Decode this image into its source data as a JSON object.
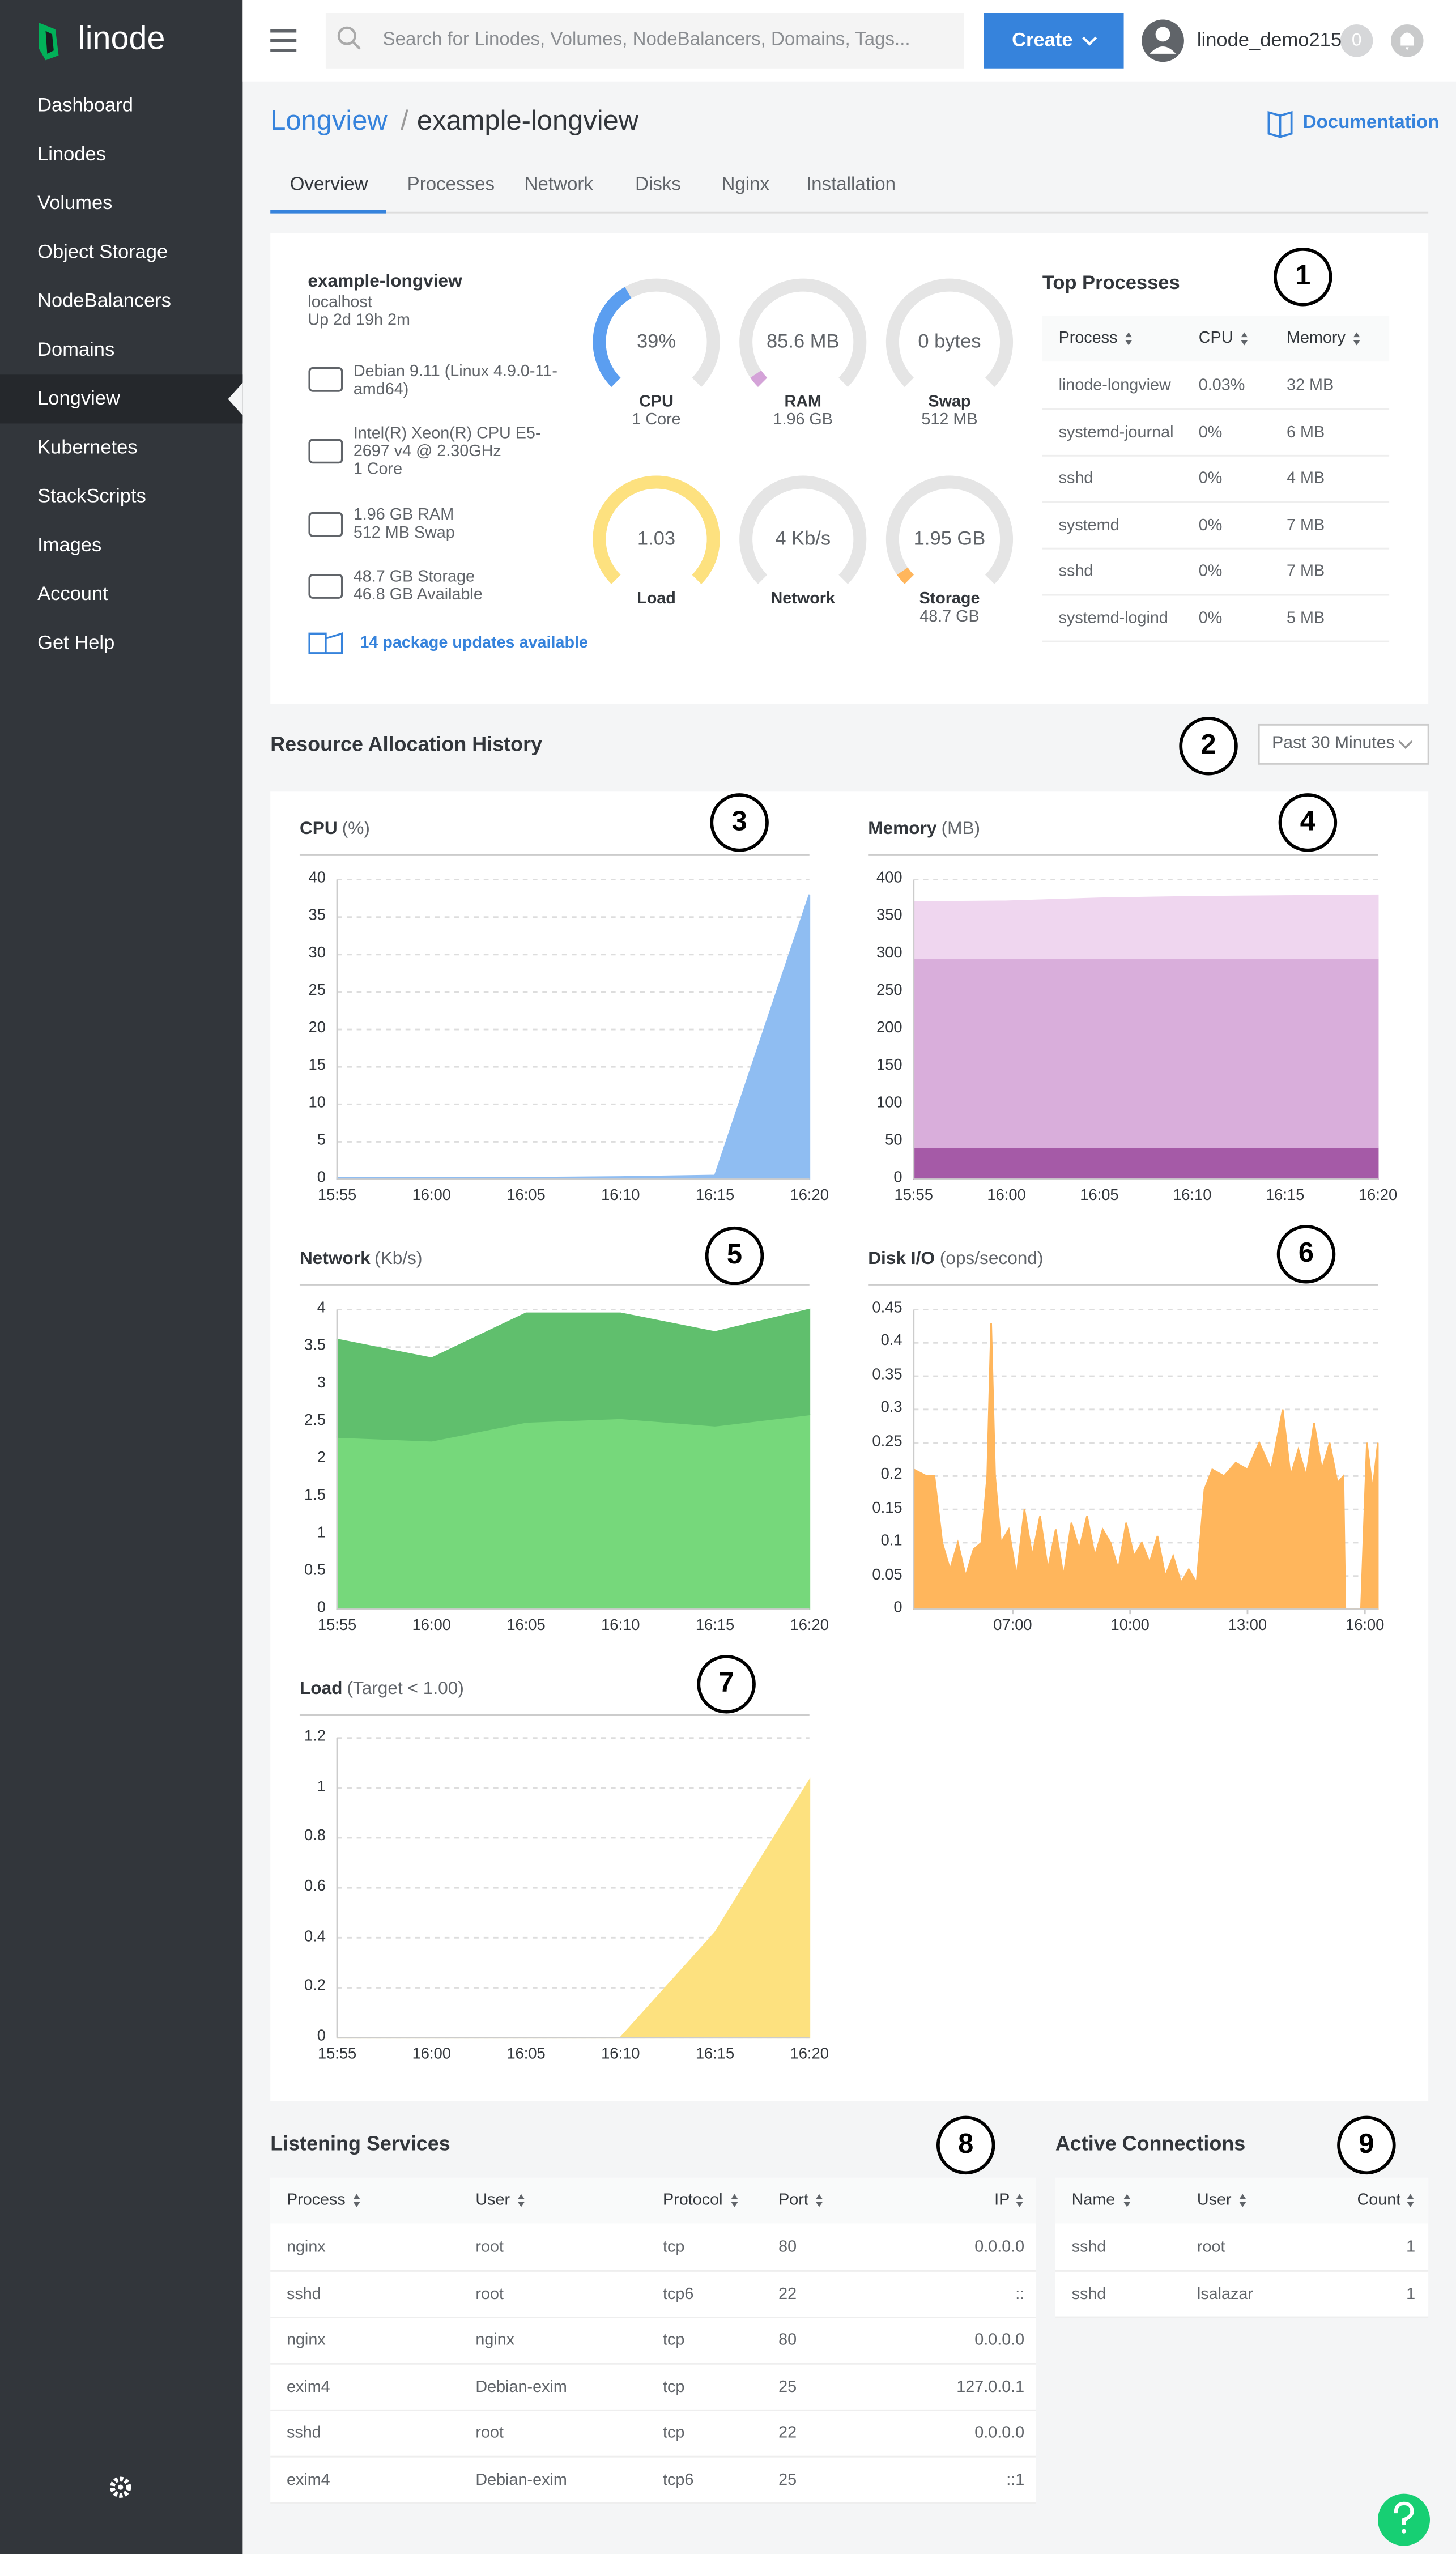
{
  "sidebar": {
    "logo": "linode",
    "menu": [
      "Dashboard",
      "Linodes",
      "Volumes",
      "Object Storage",
      "NodeBalancers",
      "Domains",
      "Longview",
      "Kubernetes",
      "StackScripts",
      "Images",
      "Account",
      "Get Help"
    ]
  },
  "topbar": {
    "search_placeholder": "Search for Linodes, Volumes, NodeBalancers, Domains, Tags...",
    "create_button": "Create",
    "username": "linode_demo215",
    "notification_count": "0"
  },
  "page_header": {
    "breadcrumb_parent": "Longview",
    "separator": "/",
    "title": "example-longview",
    "documentation": "Documentation"
  },
  "tabs": [
    "Overview",
    "Processes",
    "Network",
    "Disks",
    "Nginx",
    "Installation"
  ],
  "overview": {
    "hostname": "example-longview",
    "host": "localhost",
    "uptime": "Up 2d 19h 2m",
    "specs": [
      [
        "Debian 9.11 (Linux 4.9.0-11-amd64)"
      ],
      [
        "Intel(R) Xeon(R) CPU E5-2697 v4 @ 2.30GHz",
        "1 Core"
      ],
      [
        "1.96 GB RAM",
        "512 MB Swap"
      ],
      [
        "48.7 GB Storage",
        "46.8 GB Available"
      ]
    ],
    "updates": "14 package updates available",
    "gauges": [
      {
        "value_label": "39%",
        "name": "CPU",
        "detail": "1 Core",
        "fill": 39,
        "color": "#5b9ef0"
      },
      {
        "value_label": "85.6 MB",
        "name": "RAM",
        "detail": "1.96 GB",
        "fill": 4,
        "color": "#d4a3d8"
      },
      {
        "value_label": "0 bytes",
        "name": "Swap",
        "detail": "512 MB",
        "fill": 0,
        "color": "#d4a3d8"
      },
      {
        "value_label": "1.03",
        "name": "Load",
        "fill": 100,
        "color": "#fde17f"
      },
      {
        "value_label": "4 Kb/s",
        "name": "Network",
        "fill": 0,
        "color": "#5ec16d"
      },
      {
        "value_label": "1.95 GB",
        "name": "Storage",
        "detail": "48.7 GB",
        "fill": 4,
        "color": "#ffb65c"
      }
    ]
  },
  "top_processes": {
    "title": "Top Processes",
    "columns": [
      "Process",
      "CPU",
      "Memory"
    ],
    "rows": [
      [
        "linode-longview",
        "0.03%",
        "32 MB"
      ],
      [
        "systemd-journal",
        "0%",
        "6 MB"
      ],
      [
        "sshd",
        "0%",
        "4 MB"
      ],
      [
        "systemd",
        "0%",
        "7 MB"
      ],
      [
        "sshd",
        "0%",
        "7 MB"
      ],
      [
        "systemd-logind",
        "0%",
        "5 MB"
      ]
    ]
  },
  "resource_history": {
    "title": "Resource Allocation History",
    "range": "Past 30 Minutes"
  },
  "listening_services": {
    "title": "Listening Services",
    "columns": [
      "Process",
      "User",
      "Protocol",
      "Port",
      "IP"
    ],
    "rows": [
      [
        "nginx",
        "root",
        "tcp",
        "80",
        "0.0.0.0"
      ],
      [
        "sshd",
        "root",
        "tcp6",
        "22",
        "::"
      ],
      [
        "nginx",
        "nginx",
        "tcp",
        "80",
        "0.0.0.0"
      ],
      [
        "exim4",
        "Debian-exim",
        "tcp",
        "25",
        "127.0.0.1"
      ],
      [
        "sshd",
        "root",
        "tcp",
        "22",
        "0.0.0.0"
      ],
      [
        "exim4",
        "Debian-exim",
        "tcp6",
        "25",
        "::1"
      ]
    ]
  },
  "active_connections": {
    "title": "Active Connections",
    "columns": [
      "Name",
      "User",
      "Count"
    ],
    "rows": [
      [
        "sshd",
        "root",
        "1"
      ],
      [
        "sshd",
        "lsalazar",
        "1"
      ]
    ]
  },
  "markers": [
    "1",
    "2",
    "3",
    "4",
    "5",
    "6",
    "7",
    "8",
    "9"
  ],
  "chart_data": [
    {
      "type": "area",
      "title": "CPU",
      "subtitle": "(%)",
      "categories": [
        "15:55",
        "16:00",
        "16:05",
        "16:10",
        "16:15",
        "16:20"
      ],
      "values": [
        0.2,
        0.2,
        0.2,
        0.3,
        0.5,
        38
      ],
      "color": "#8fbdf2",
      "ylim": [
        0,
        40
      ],
      "yticks": [
        0,
        5,
        10,
        15,
        20,
        25,
        30,
        35,
        40
      ],
      "grid": true
    },
    {
      "type": "area",
      "stacked": true,
      "title": "Memory",
      "subtitle": "(MB)",
      "categories": [
        "15:55",
        "16:00",
        "16:05",
        "16:10",
        "16:15",
        "16:20"
      ],
      "series": [
        {
          "color": "#a55aa7",
          "values": [
            43,
            43,
            43,
            43,
            43,
            43
          ]
        },
        {
          "color": "#d9aedb",
          "values": [
            252,
            252,
            252,
            252,
            252,
            252
          ]
        },
        {
          "color": "#efd6ef",
          "values": [
            75,
            76,
            80,
            82,
            83,
            84
          ]
        }
      ],
      "ylim": [
        0,
        400
      ],
      "yticks": [
        0,
        50,
        100,
        150,
        200,
        250,
        300,
        350,
        400
      ],
      "grid": true
    },
    {
      "type": "area",
      "stacked": true,
      "title": "Network",
      "subtitle": "(Kb/s)",
      "categories": [
        "15:55",
        "16:00",
        "16:05",
        "16:10",
        "16:15",
        "16:20"
      ],
      "series": [
        {
          "color": "#76d87b",
          "values": [
            2.3,
            2.25,
            2.5,
            2.55,
            2.45,
            2.6
          ]
        },
        {
          "color": "#60bf6d",
          "values": [
            1.3,
            1.1,
            1.45,
            1.4,
            1.25,
            1.4
          ]
        }
      ],
      "ylim": [
        0,
        4
      ],
      "yticks": [
        0,
        0.5,
        1,
        1.5,
        2,
        2.5,
        3,
        3.5,
        4
      ],
      "grid": true
    },
    {
      "type": "area",
      "title": "Disk I/O",
      "subtitle": "(ops/second)",
      "x": [
        4.47,
        4.8,
        5.0,
        5.2,
        5.4,
        5.6,
        5.8,
        6.0,
        6.2,
        6.35,
        6.45,
        6.55,
        6.7,
        6.9,
        7.1,
        7.3,
        7.5,
        7.7,
        7.9,
        8.1,
        8.3,
        8.5,
        8.7,
        8.9,
        9.1,
        9.3,
        9.5,
        9.7,
        9.9,
        10.1,
        10.3,
        10.5,
        10.7,
        10.9,
        11.1,
        11.3,
        11.5,
        11.7,
        11.9,
        12.1,
        12.4,
        12.7,
        13.0,
        13.3,
        13.6,
        13.9,
        14.1,
        14.3,
        14.5,
        14.7,
        14.9,
        15.1,
        15.3,
        15.45,
        15.5,
        15.9,
        16.05,
        16.2,
        16.33
      ],
      "values": [
        0.21,
        0.2,
        0.2,
        0.1,
        0.06,
        0.1,
        0.05,
        0.09,
        0.1,
        0.2,
        0.43,
        0.2,
        0.1,
        0.12,
        0.05,
        0.15,
        0.08,
        0.14,
        0.06,
        0.12,
        0.05,
        0.13,
        0.09,
        0.14,
        0.08,
        0.12,
        0.1,
        0.06,
        0.13,
        0.08,
        0.1,
        0.07,
        0.11,
        0.05,
        0.08,
        0.04,
        0.06,
        0.04,
        0.18,
        0.21,
        0.2,
        0.22,
        0.21,
        0.25,
        0.21,
        0.3,
        0.2,
        0.24,
        0.2,
        0.28,
        0.21,
        0.25,
        0.19,
        0.2,
        0,
        0,
        0.25,
        0.18,
        0.25
      ],
      "color": "#ffb65c",
      "xlim": [
        4.47,
        16.33
      ],
      "xticks": [
        {
          "value": 7,
          "label": "07:00"
        },
        {
          "value": 10,
          "label": "10:00"
        },
        {
          "value": 13,
          "label": "13:00"
        },
        {
          "value": 16,
          "label": "16:00"
        }
      ],
      "ylim": [
        0,
        0.45
      ],
      "yticks": [
        0,
        0.05,
        0.1,
        0.15,
        0.2,
        0.25,
        0.3,
        0.35,
        0.4,
        0.45
      ],
      "grid": true
    },
    {
      "type": "area",
      "title": "Load",
      "subtitle": "(Target < 1.00)",
      "categories": [
        "15:55",
        "16:00",
        "16:05",
        "16:10",
        "16:15",
        "16:20"
      ],
      "values": [
        0,
        0,
        0,
        0,
        0.42,
        1.03
      ],
      "color": "#fde17f",
      "ylim": [
        0,
        1.2
      ],
      "yticks": [
        0,
        0.2,
        0.4,
        0.6,
        0.8,
        1,
        1.2
      ],
      "grid": true
    }
  ]
}
